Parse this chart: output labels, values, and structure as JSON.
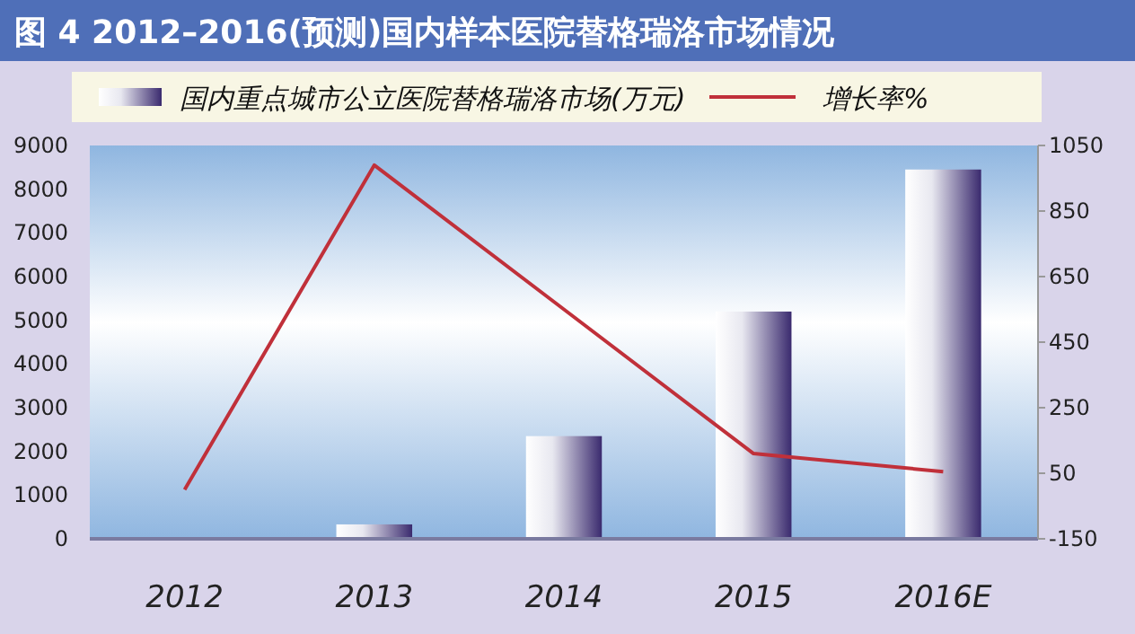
{
  "chart_data": {
    "type": "bar",
    "title": "图 4 2012–2016(预测)国内样本医院替格瑞洛市场情况",
    "categories": [
      "2012",
      "2013",
      "2014",
      "2015",
      "2016E"
    ],
    "series": [
      {
        "name": "国内重点城市公立医院替格瑞洛市场(万元)",
        "color": "#3a2a6e",
        "values": [
          null,
          330,
          2350,
          5200,
          8450
        ]
      },
      {
        "name": "增长率%",
        "type": "line",
        "axis": "y2",
        "color": "#c0303a",
        "values": [
          0,
          990,
          550,
          110,
          55
        ]
      }
    ],
    "ylim": [
      0,
      9000
    ],
    "yticks": [
      0,
      1000,
      2000,
      3000,
      4000,
      5000,
      6000,
      7000,
      8000,
      9000
    ],
    "y2lim": [
      -150,
      1050
    ],
    "y2ticks": [
      -150,
      50,
      250,
      450,
      650,
      850,
      1050
    ],
    "legend": "top",
    "grid": false
  }
}
